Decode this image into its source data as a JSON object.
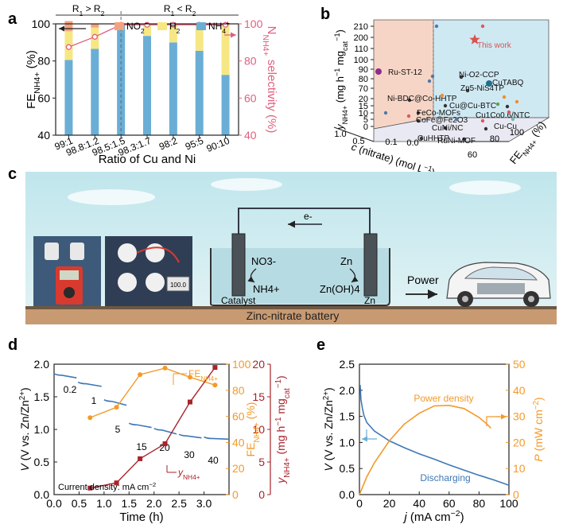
{
  "panels": {
    "a": "a",
    "b": "b",
    "c": "c",
    "d": "d",
    "e": "e"
  },
  "colors": {
    "no2": "#f4a27e",
    "h2": "#f7e784",
    "nh4": "#6aaed6",
    "selectivity": "#e0607e",
    "orange": "#f39a2a",
    "darkred": "#a8232a",
    "blue": "#3f78b5",
    "panelBgLight": "#d8eef2"
  },
  "chart_data": [
    {
      "id": "a",
      "type": "bar",
      "title": "",
      "xlabel": "Ratio of Cu and Ni",
      "ylabel_main": "FE",
      "ylabel_sub": "NH4+",
      "ylabel_unit": "(%)",
      "y2label_main": "N",
      "y2label_sub": "NH4+",
      "y2label_unit": "selectivity (%)",
      "categories": [
        "99:1",
        "98.8:1.2",
        "98.5:1.5",
        "98.3:1.7",
        "98:2",
        "95:5",
        "90:10"
      ],
      "ylim": [
        40,
        100
      ],
      "yticks": [
        "40",
        "60",
        "80",
        "100"
      ],
      "y2ticks": [
        "40",
        "60",
        "80",
        "100"
      ],
      "regions": [
        "R1 > R2",
        "R1 < R2"
      ],
      "legend": [
        "NO2-",
        "H2",
        "NH4+"
      ],
      "series": [
        {
          "name": "NH4+",
          "values": [
            80.5,
            86.5,
            99.8,
            93.5,
            90.0,
            85.5,
            72.5
          ]
        },
        {
          "name": "H2",
          "values": [
            15.5,
            11.5,
            0,
            5.8,
            9.5,
            13.5,
            27.0
          ]
        },
        {
          "name": "NO2-",
          "values": [
            5.5,
            2.0,
            0,
            0.3,
            0.5,
            0.5,
            0.5
          ]
        },
        {
          "name": "Selectivity",
          "values": [
            87.5,
            93.0,
            99.5,
            99.5,
            99.5,
            99.5,
            99.5
          ]
        }
      ]
    },
    {
      "id": "b",
      "type": "scatter",
      "title": "",
      "xlabel": "c (nitrate) (mol L-1)",
      "ylabel": "yNH4+ (mg h-1 mgcat-1)",
      "zlabel": "FE NH4+ (%)",
      "yticks": [
        "0",
        "5",
        "10",
        "15",
        "20",
        "70",
        "80",
        "90",
        "100",
        "110",
        "200",
        "210"
      ],
      "xticks": [
        "1.0",
        "0.5",
        "0.1",
        "0.0"
      ],
      "zticks": [
        "60",
        "80",
        "100"
      ],
      "labels": [
        "This work",
        "Ru-ST-12",
        "Ni-O2-CCP",
        "Zn5-NiS4TP",
        "CuTABQ",
        "Ni-BDC@Co-HHTP",
        "Cu@Cu-BTC",
        "FeCo-MOFs",
        "CoFe@Fe2O3",
        "Cu1Co0.6/NTC",
        "CuNi/NC",
        "Cu-Cu",
        "RuNi-MOF",
        "CuHHTP"
      ]
    },
    {
      "id": "d",
      "type": "line",
      "xlabel": "Time (h)",
      "ylabel": "V (V vs. Zn/Zn2+)",
      "y2label": "FE NH4+ (%)",
      "y3label": "yNH4+ (mg h-1 mgcat-1)",
      "xlim": [
        0,
        3.5
      ],
      "ylim": [
        0,
        2.0
      ],
      "y2lim": [
        0,
        100
      ],
      "y3lim": [
        0,
        20
      ],
      "xticks": [
        "0.0",
        "0.5",
        "1.0",
        "1.5",
        "2.0",
        "2.5",
        "3.0"
      ],
      "yticks": [
        "0.0",
        "0.5",
        "1.0",
        "1.5",
        "2.0"
      ],
      "y2ticks": [
        "0",
        "20",
        "40",
        "60",
        "80",
        "100"
      ],
      "y3ticks": [
        "0",
        "5",
        "10",
        "15",
        "20"
      ],
      "annotation": "Current density: mA cm-2",
      "current_labels": [
        "0.2",
        "1",
        "5",
        "15",
        "20",
        "30",
        "40"
      ],
      "voltage_segments": [
        {
          "x": [
            0.0,
            0.45
          ],
          "y": [
            1.83,
            1.79
          ]
        },
        {
          "x": [
            0.48,
            0.95
          ],
          "y": [
            1.7,
            1.66
          ]
        },
        {
          "x": [
            1.0,
            1.45
          ],
          "y": [
            1.43,
            1.37
          ]
        },
        {
          "x": [
            1.5,
            1.95
          ],
          "y": [
            1.07,
            1.03
          ]
        },
        {
          "x": [
            2.0,
            2.45
          ],
          "y": [
            0.99,
            0.93
          ]
        },
        {
          "x": [
            2.5,
            2.95
          ],
          "y": [
            0.9,
            0.87
          ]
        },
        {
          "x": [
            3.0,
            3.5
          ],
          "y": [
            0.86,
            0.85
          ]
        }
      ],
      "series": [
        {
          "name": "FE NH4+",
          "x": [
            0.72,
            1.25,
            1.72,
            2.22,
            2.72,
            3.22
          ],
          "values": [
            59,
            67,
            92,
            97,
            90,
            84
          ]
        },
        {
          "name": "yNH4+",
          "x": [
            0.72,
            1.25,
            1.72,
            2.22,
            2.72,
            3.22
          ],
          "values": [
            1.0,
            1.8,
            5.5,
            7.8,
            14.2,
            19.5
          ]
        }
      ]
    },
    {
      "id": "e",
      "type": "line",
      "xlabel": "j (mA cm-2)",
      "ylabel": "V (V vs. Zn/Zn2+)",
      "y2label": "P (mW cm-2)",
      "xlim": [
        0,
        100
      ],
      "ylim": [
        0,
        2.5
      ],
      "y2lim": [
        0,
        50
      ],
      "xticks": [
        "0",
        "20",
        "40",
        "60",
        "80",
        "100"
      ],
      "yticks": [
        "0.0",
        "0.5",
        "1.0",
        "1.5",
        "2.0",
        "2.5"
      ],
      "y2ticks": [
        "0",
        "10",
        "20",
        "30",
        "40",
        "50"
      ],
      "series": [
        {
          "name": "Discharging",
          "x": [
            0.5,
            1,
            2,
            3,
            5,
            10,
            20,
            30,
            40,
            50,
            60,
            70,
            80,
            90,
            100
          ],
          "values": [
            2.1,
            1.82,
            1.65,
            1.52,
            1.38,
            1.22,
            1.03,
            0.9,
            0.78,
            0.68,
            0.57,
            0.47,
            0.37,
            0.28,
            0.18
          ]
        },
        {
          "name": "Power density",
          "x": [
            0,
            5,
            10,
            20,
            30,
            40,
            50,
            60,
            70,
            80,
            85,
            88
          ],
          "values": [
            0,
            6.9,
            12.2,
            20.6,
            27.0,
            31.2,
            34.0,
            34.2,
            33.0,
            29.6,
            27.2,
            25.5
          ]
        }
      ]
    }
  ],
  "panel_c": {
    "electron_label": "e-",
    "cathode_reactant": "NO3-",
    "cathode_product": "NH4+",
    "cathode_label": "Catalyst",
    "anode_reactant": "Zn",
    "anode_product": "Zn(OH)4",
    "anode_label": "Zn",
    "power_label": "Power",
    "caption": "Zinc-nitrate battery",
    "lcd_reading": "100.0"
  }
}
